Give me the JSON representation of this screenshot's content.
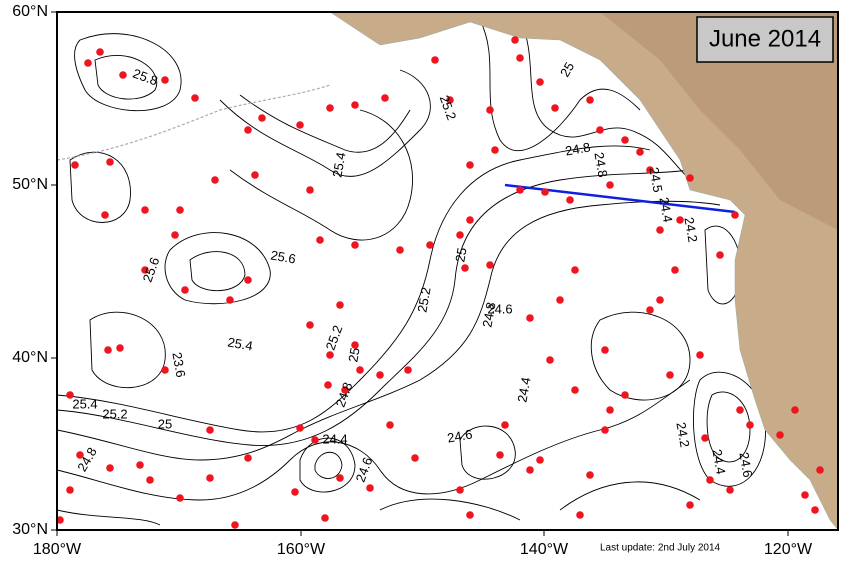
{
  "map": {
    "title": "June 2014",
    "footer": "Last update: 2nd July 2014",
    "x_ticks": [
      "180°W",
      "160°W",
      "140°W",
      "120°W"
    ],
    "y_ticks": [
      "60°N",
      "50°N",
      "40°N",
      "30°N"
    ],
    "contour_labels": [
      "25.8",
      "25.2",
      "25",
      "25.4",
      "24.8",
      "24.8",
      "24.5",
      "24.4",
      "24.2",
      "25.6",
      "25.6",
      "25",
      "25.2",
      "24.8",
      "24.6",
      "25.4",
      "25.2",
      "25",
      "24.8",
      "23.6",
      "25.4",
      "25.2",
      "25",
      "24.8",
      "24.4",
      "24.6",
      "24.6",
      "24.4",
      "24.2",
      "24.4",
      "24.6"
    ]
  }
}
